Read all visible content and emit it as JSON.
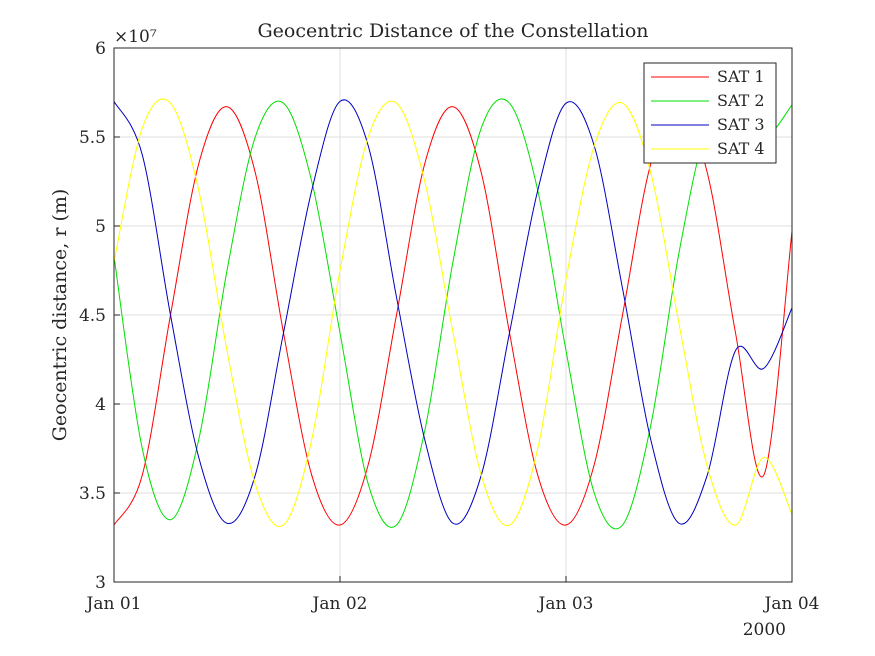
{
  "chart_data": {
    "type": "line",
    "title": "Geocentric Distance of the Constellation",
    "xlabel": "",
    "ylabel": "Geocentric distance, r (m)",
    "y_exponent_label": "×10⁷",
    "x_year_label": "2000",
    "x_ticks": [
      "Jan 01",
      "Jan 02",
      "Jan 03",
      "Jan 04"
    ],
    "x_range_days": [
      0,
      3
    ],
    "y_ticks": [
      "3",
      "3.5",
      "4",
      "4.5",
      "5",
      "5.5",
      "6"
    ],
    "ylim": [
      30000000,
      60000000
    ],
    "grid": true,
    "legend_position": "top-right",
    "series": [
      {
        "name": "SAT 1",
        "color": "#ff0000",
        "x_days": [
          0.0,
          0.125,
          0.25,
          0.375,
          0.5,
          0.625,
          0.75,
          0.875,
          1.0,
          1.125,
          1.25,
          1.375,
          1.5,
          1.625,
          1.75,
          1.875,
          2.0,
          2.125,
          2.25,
          2.375,
          2.5,
          2.625,
          2.75,
          2.875,
          3.0
        ],
        "values": [
          33200000,
          36000000,
          45000000,
          53500000,
          56700000,
          53000000,
          44000000,
          36000000,
          33200000,
          36600000,
          45000000,
          53500000,
          56700000,
          53000000,
          44000000,
          36000000,
          33200000,
          36600000,
          45000000,
          53500000,
          56700000,
          53000000,
          44000000,
          36000000,
          49700000
        ]
      },
      {
        "name": "SAT 2",
        "color": "#00e000",
        "x_days": [
          0.0,
          0.125,
          0.25,
          0.375,
          0.5,
          0.625,
          0.75,
          0.875,
          1.0,
          1.125,
          1.25,
          1.375,
          1.5,
          1.625,
          1.75,
          1.875,
          2.0,
          2.125,
          2.25,
          2.375,
          2.5,
          2.625,
          2.75,
          2.875,
          3.0
        ],
        "values": [
          48300000,
          37500000,
          33500000,
          38000000,
          47500000,
          55000000,
          56900000,
          52500000,
          44000000,
          35500000,
          33200000,
          38500000,
          48000000,
          55500000,
          56900000,
          52000000,
          43000000,
          35000000,
          33200000,
          38800000,
          48500000,
          55600000,
          56900000,
          55000000,
          56800000
        ]
      },
      {
        "name": "SAT 3",
        "color": "#0000c0",
        "x_days": [
          0.0,
          0.125,
          0.25,
          0.375,
          0.5,
          0.625,
          0.75,
          0.875,
          1.0,
          1.125,
          1.25,
          1.375,
          1.5,
          1.625,
          1.75,
          1.875,
          2.0,
          2.125,
          2.25,
          2.375,
          2.5,
          2.625,
          2.75,
          2.875,
          3.0
        ],
        "values": [
          57000000,
          54000000,
          45000000,
          37000000,
          33300000,
          36000000,
          44000000,
          52000000,
          57000000,
          54500000,
          46000000,
          38000000,
          33300000,
          36000000,
          44000000,
          52000000,
          56900000,
          54500000,
          46500000,
          38000000,
          33300000,
          36000000,
          43000000,
          42000000,
          45400000
        ]
      },
      {
        "name": "SAT 4",
        "color": "#ffff00",
        "x_days": [
          0.0,
          0.125,
          0.25,
          0.375,
          0.5,
          0.625,
          0.75,
          0.875,
          1.0,
          1.125,
          1.25,
          1.375,
          1.5,
          1.625,
          1.75,
          1.875,
          2.0,
          2.125,
          2.25,
          2.375,
          2.5,
          2.625,
          2.75,
          2.875,
          3.0
        ],
        "values": [
          48000000,
          55500000,
          56900000,
          52000000,
          43000000,
          35500000,
          33200000,
          38000000,
          47500000,
          55000000,
          56900000,
          52500000,
          44000000,
          36000000,
          33200000,
          37500000,
          47000000,
          54500000,
          56900000,
          53000000,
          44500000,
          36500000,
          33200000,
          37000000,
          33800000
        ]
      }
    ]
  }
}
